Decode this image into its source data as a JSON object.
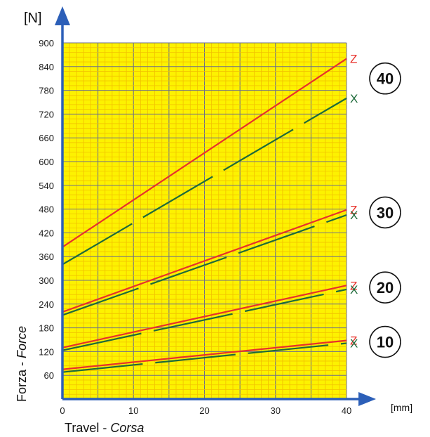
{
  "chart_data": {
    "type": "line",
    "ylabel_unit": "[N]",
    "xlabel_unit": "[mm]",
    "xlabel": "Travel",
    "xlabel_alt": "Corsa",
    "ylabel": "Forza",
    "ylabel_alt": "Force",
    "xlim": [
      0,
      40
    ],
    "ylim": [
      0,
      900
    ],
    "xticks": [
      "0",
      "10",
      "20",
      "30",
      "40"
    ],
    "yticks": [
      "60",
      "120",
      "180",
      "240",
      "300",
      "360",
      "420",
      "480",
      "540",
      "600",
      "660",
      "720",
      "780",
      "840",
      "900"
    ],
    "grid": true,
    "groups": [
      {
        "label": "40",
        "series": [
          {
            "name": "Z",
            "color": "#e8312b",
            "style": "solid",
            "x": [
              0,
              40
            ],
            "y": [
              384,
              860
            ]
          },
          {
            "name": "X",
            "color": "#1e6b3a",
            "style": "dashed",
            "x": [
              0,
              40
            ],
            "y": [
              340,
              760
            ]
          }
        ]
      },
      {
        "label": "30",
        "series": [
          {
            "name": "Z",
            "color": "#e8312b",
            "style": "solid",
            "x": [
              0,
              40
            ],
            "y": [
              220,
              478
            ]
          },
          {
            "name": "X",
            "color": "#1e6b3a",
            "style": "dashed",
            "x": [
              0,
              40
            ],
            "y": [
              212,
              465
            ]
          }
        ]
      },
      {
        "label": "20",
        "series": [
          {
            "name": "Z",
            "color": "#e8312b",
            "style": "solid",
            "x": [
              0,
              40
            ],
            "y": [
              130,
              287
            ]
          },
          {
            "name": "X",
            "color": "#1e6b3a",
            "style": "dashed",
            "x": [
              0,
              40
            ],
            "y": [
              123,
              277
            ]
          }
        ]
      },
      {
        "label": "10",
        "series": [
          {
            "name": "Z",
            "color": "#e8312b",
            "style": "solid",
            "x": [
              0,
              40
            ],
            "y": [
              75,
              148
            ]
          },
          {
            "name": "X",
            "color": "#1e6b3a",
            "style": "dashed",
            "x": [
              0,
              40
            ],
            "y": [
              68,
              141
            ]
          }
        ]
      }
    ],
    "colors": {
      "background": "#fdf200",
      "minor_grid": "#f2c200",
      "major_grid": "#6f6f88",
      "axis": "#2c5fb8"
    }
  }
}
